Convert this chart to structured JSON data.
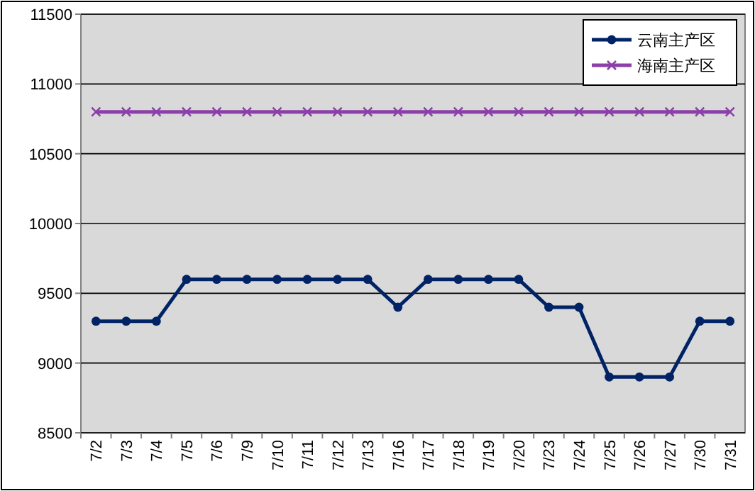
{
  "chart_data": {
    "type": "line",
    "categories": [
      "7/2",
      "7/3",
      "7/4",
      "7/5",
      "7/6",
      "7/9",
      "7/10",
      "7/11",
      "7/12",
      "7/13",
      "7/16",
      "7/17",
      "7/18",
      "7/19",
      "7/20",
      "7/23",
      "7/24",
      "7/25",
      "7/26",
      "7/27",
      "7/30",
      "7/31"
    ],
    "series": [
      {
        "name": "云南主产区",
        "color": "#002366",
        "marker": "circle",
        "values": [
          9300,
          9300,
          9300,
          9600,
          9600,
          9600,
          9600,
          9600,
          9600,
          9600,
          9400,
          9600,
          9600,
          9600,
          9600,
          9400,
          9400,
          8900,
          8900,
          8900,
          9300,
          9300
        ]
      },
      {
        "name": "海南主产区",
        "color": "#8b3fa8",
        "marker": "cross",
        "values": [
          10800,
          10800,
          10800,
          10800,
          10800,
          10800,
          10800,
          10800,
          10800,
          10800,
          10800,
          10800,
          10800,
          10800,
          10800,
          10800,
          10800,
          10800,
          10800,
          10800,
          10800,
          10800
        ]
      }
    ],
    "ylim": [
      8500,
      11500
    ],
    "yticks": [
      8500,
      9000,
      9500,
      10000,
      10500,
      11000,
      11500
    ],
    "grid": "y",
    "legend": "top right",
    "line_style": "solid"
  }
}
